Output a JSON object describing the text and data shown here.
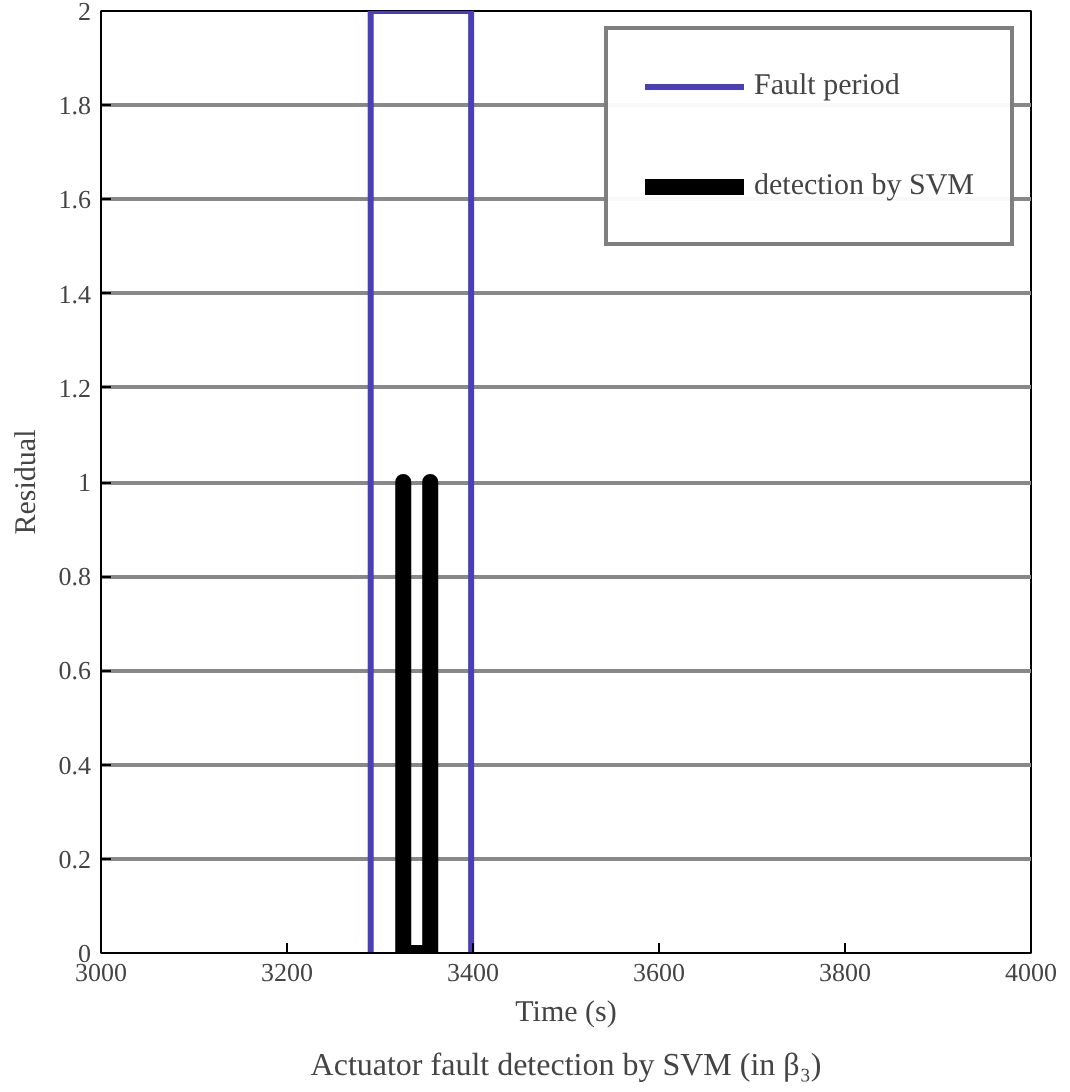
{
  "chart_data": {
    "type": "line",
    "xlabel": "Time (s)",
    "ylabel": "Residual",
    "series": [
      {
        "name": "Fault period",
        "color": "#4b3fb5",
        "x": [
          3290,
          3290,
          3398,
          3398
        ],
        "values": [
          0,
          2,
          2,
          0
        ]
      },
      {
        "name": "detection by SVM",
        "color": "#000000",
        "x": [
          3325,
          3325,
          3325,
          3354,
          3354,
          3354
        ],
        "values": [
          0,
          1,
          0,
          0,
          1,
          0
        ]
      }
    ],
    "xlim": [
      3000,
      4000
    ],
    "xticks": [
      3000,
      3200,
      3400,
      3600,
      3800,
      4000
    ],
    "ylim": [
      0,
      2
    ],
    "yticks": [
      0,
      0.2,
      0.4,
      0.6,
      0.8,
      1,
      1.2,
      1.4,
      1.6,
      1.8,
      2
    ],
    "grid": "y",
    "legend": "top right",
    "annotations": [
      "Actuator fault detection by SVM (in β₃)"
    ]
  }
}
